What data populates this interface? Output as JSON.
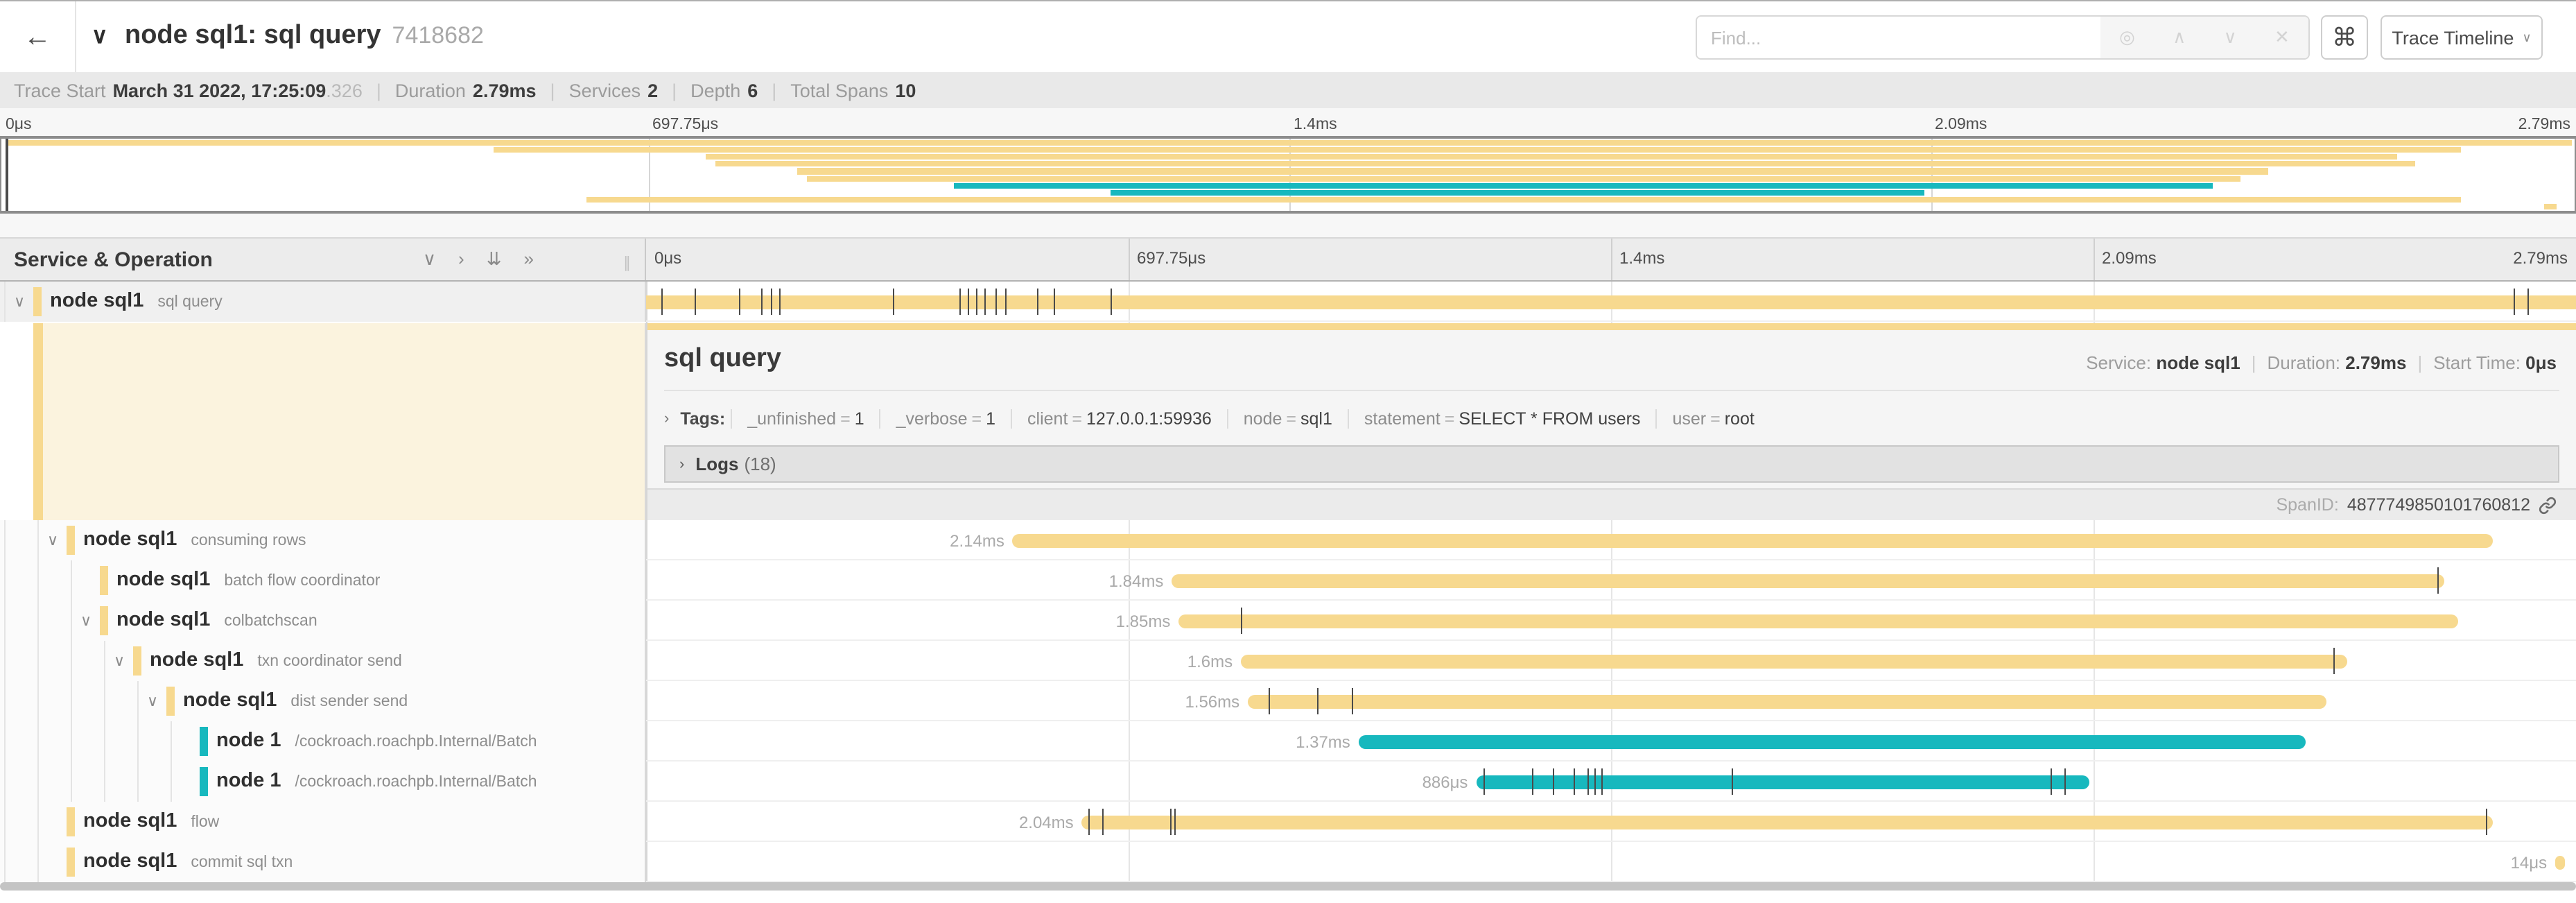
{
  "colors": {
    "tan": "#f7d98f",
    "teal": "#17b8be"
  },
  "header": {
    "back_icon": "←",
    "collapse_icon": "∨",
    "title": "node sql1: sql query",
    "trace_id_short": "7418682",
    "find_placeholder": "Find...",
    "locate_icon": "◎",
    "prev_icon": "∧",
    "next_icon": "∨",
    "clear_icon": "✕",
    "shortcut_icon": "⌘",
    "view_button_label": "Trace Timeline",
    "view_button_caret": "∨"
  },
  "stats": [
    {
      "label": "Trace Start",
      "value": "March 31 2022, 17:25:09",
      "suffix": ".326"
    },
    {
      "label": "Duration",
      "value": "2.79ms",
      "suffix": ""
    },
    {
      "label": "Services",
      "value": "2",
      "suffix": ""
    },
    {
      "label": "Depth",
      "value": "6",
      "suffix": ""
    },
    {
      "label": "Total Spans",
      "value": "10",
      "suffix": ""
    }
  ],
  "timeline": {
    "total_ms": 2.79,
    "tick_labels": [
      "0μs",
      "697.75μs",
      "1.4ms",
      "2.09ms",
      "2.79ms"
    ]
  },
  "tree_header": {
    "title": "Service & Operation",
    "collapse_one_icon": "∨",
    "expand_one_icon": "›",
    "collapse_all_icon": "⇊",
    "expand_all_icon": "»",
    "grip_icon": "∥"
  },
  "spans": [
    {
      "service": "node sql1",
      "operation": "sql query",
      "color": "tan",
      "depth": 0,
      "expandable": true,
      "start_ms": 0,
      "duration_ms": 2.79,
      "duration_label": "",
      "log_ticks_ms": [
        0.022,
        0.07,
        0.134,
        0.167,
        0.181,
        0.192,
        0.357,
        0.452,
        0.466,
        0.477,
        0.49,
        0.505,
        0.52,
        0.566,
        0.589,
        0.672,
        2.7,
        2.72
      ]
    },
    {
      "service": "node sql1",
      "operation": "consuming rows",
      "color": "tan",
      "depth": 1,
      "expandable": true,
      "start_ms": 0.53,
      "duration_ms": 2.14,
      "duration_label": "2.14ms",
      "log_ticks_ms": []
    },
    {
      "service": "node sql1",
      "operation": "batch flow coordinator",
      "color": "tan",
      "depth": 2,
      "expandable": false,
      "start_ms": 0.76,
      "duration_ms": 1.84,
      "duration_label": "1.84ms",
      "log_ticks_ms": [
        2.59
      ]
    },
    {
      "service": "node sql1",
      "operation": "colbatchscan",
      "color": "tan",
      "depth": 2,
      "expandable": true,
      "start_ms": 0.77,
      "duration_ms": 1.85,
      "duration_label": "1.85ms",
      "log_ticks_ms": [
        0.86
      ]
    },
    {
      "service": "node sql1",
      "operation": "txn coordinator send",
      "color": "tan",
      "depth": 3,
      "expandable": true,
      "start_ms": 0.86,
      "duration_ms": 1.6,
      "duration_label": "1.6ms",
      "log_ticks_ms": [
        2.44
      ]
    },
    {
      "service": "node sql1",
      "operation": "dist sender send",
      "color": "tan",
      "depth": 4,
      "expandable": true,
      "start_ms": 0.87,
      "duration_ms": 1.56,
      "duration_label": "1.56ms",
      "log_ticks_ms": [
        0.9,
        0.97,
        1.02
      ]
    },
    {
      "service": "node 1",
      "operation": "/cockroach.roachpb.Internal/Batch",
      "color": "teal",
      "depth": 5,
      "expandable": false,
      "start_ms": 1.03,
      "duration_ms": 1.37,
      "duration_label": "1.37ms",
      "log_ticks_ms": []
    },
    {
      "service": "node 1",
      "operation": "/cockroach.roachpb.Internal/Batch",
      "color": "teal",
      "depth": 5,
      "expandable": false,
      "start_ms": 1.2,
      "duration_ms": 0.886,
      "duration_label": "886μs",
      "log_ticks_ms": [
        1.21,
        1.28,
        1.31,
        1.34,
        1.36,
        1.37,
        1.38,
        1.57,
        2.03,
        2.05
      ]
    },
    {
      "service": "node sql1",
      "operation": "flow",
      "color": "tan",
      "depth": 1,
      "expandable": false,
      "start_ms": 0.63,
      "duration_ms": 2.04,
      "duration_label": "2.04ms",
      "log_ticks_ms": [
        0.64,
        0.66,
        0.757,
        0.764,
        2.66
      ]
    },
    {
      "service": "node sql1",
      "operation": "commit sql txn",
      "color": "tan",
      "depth": 1,
      "expandable": false,
      "start_ms": 2.76,
      "duration_ms": 0.014,
      "duration_label": "14μs",
      "log_ticks_ms": []
    }
  ],
  "detail": {
    "title": "sql query",
    "meta": [
      {
        "label": "Service:",
        "value": "node sql1"
      },
      {
        "label": "Duration:",
        "value": "2.79ms"
      },
      {
        "label": "Start Time:",
        "value": "0μs"
      }
    ],
    "tags_chevron": "›",
    "tags_label": "Tags:",
    "tags": [
      {
        "key": "_unfinished",
        "value": "1"
      },
      {
        "key": "_verbose",
        "value": "1"
      },
      {
        "key": "client",
        "value": "127.0.0.1:59936"
      },
      {
        "key": "node",
        "value": "sql1"
      },
      {
        "key": "statement",
        "value": "SELECT * FROM users"
      },
      {
        "key": "user",
        "value": "root"
      }
    ],
    "logs_chevron": "›",
    "logs_label": "Logs",
    "logs_count": "(18)",
    "spanid_label": "SpanID:",
    "spanid_value": "4877749850101760812"
  }
}
